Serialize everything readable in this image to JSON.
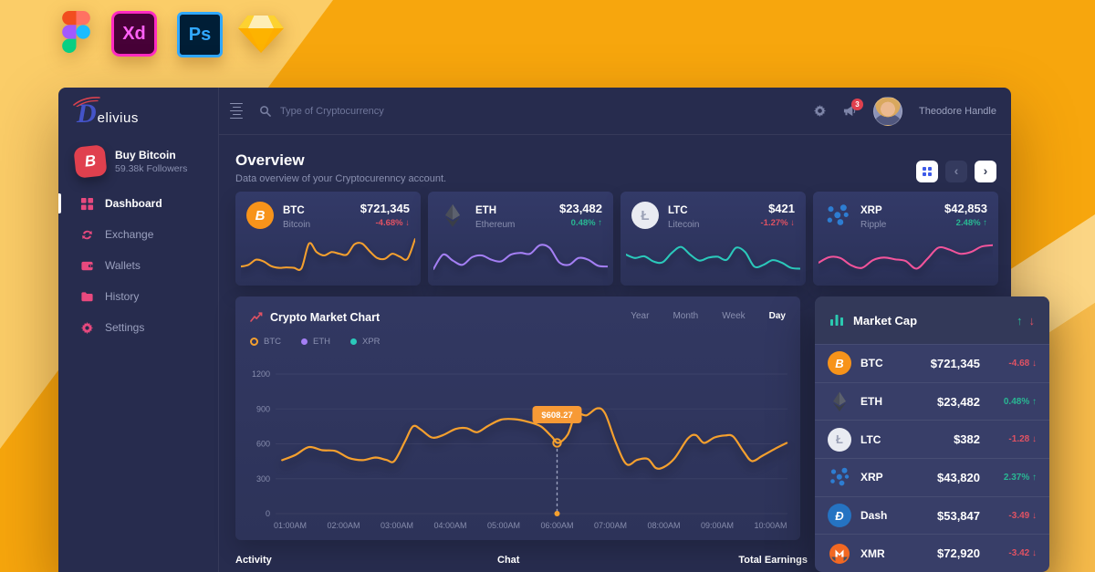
{
  "tool_icons": {
    "xd_label": "Xd",
    "ps_label": "Ps"
  },
  "brand": {
    "logo_initial": "D",
    "logo_rest": "elivius"
  },
  "sidebar": {
    "promo": {
      "title": "Buy Bitcoin",
      "subtitle": "59.38k Followers",
      "icon_glyph": "B"
    },
    "items": [
      {
        "label": "Dashboard",
        "icon": "dashboard",
        "active": true
      },
      {
        "label": "Exchange",
        "icon": "exchange",
        "active": false
      },
      {
        "label": "Wallets",
        "icon": "wallet",
        "active": false
      },
      {
        "label": "History",
        "icon": "history",
        "active": false
      },
      {
        "label": "Settings",
        "icon": "gear",
        "active": false
      }
    ]
  },
  "topbar": {
    "search_placeholder": "Type of Cryptocurrency",
    "notification_count": "3",
    "user_name": "Theodore Handle"
  },
  "overview": {
    "title": "Overview",
    "subtitle": "Data overview of your Cryptocurenncy account."
  },
  "stat_cards": [
    {
      "symbol": "BTC",
      "name": "Bitcoin",
      "price": "$721,345",
      "change": "-4.68%",
      "direction": "down",
      "line_color": "#F5A02E",
      "spark": [
        24,
        28,
        40,
        36,
        25,
        21,
        22,
        21,
        20,
        78,
        58,
        50,
        58,
        54,
        52,
        76,
        78,
        60,
        44,
        42,
        54,
        47,
        42,
        88
      ]
    },
    {
      "symbol": "ETH",
      "name": "Ethereum",
      "price": "$23,482",
      "change": "0.48%",
      "direction": "up",
      "line_color": "#A47FF4",
      "spark": [
        18,
        52,
        38,
        28,
        46,
        50,
        40,
        36,
        52,
        56,
        54,
        74,
        68,
        34,
        28,
        44,
        40,
        26,
        24
      ]
    },
    {
      "symbol": "LTC",
      "name": "Litecoin",
      "price": "$421",
      "change": "-1.27%",
      "direction": "down",
      "line_color": "#2BC9BB",
      "spark": [
        52,
        44,
        48,
        36,
        34,
        56,
        70,
        52,
        38,
        45,
        47,
        40,
        68,
        58,
        24,
        28,
        39,
        33,
        21,
        19
      ]
    },
    {
      "symbol": "XRP",
      "name": "Ripple",
      "price": "$42,853",
      "change": "2.48%",
      "direction": "up",
      "line_color": "#F2549B",
      "spark": [
        33,
        46,
        44,
        27,
        21,
        39,
        45,
        41,
        37,
        19,
        42,
        68,
        64,
        54,
        58,
        71,
        74
      ]
    }
  ],
  "market_chart": {
    "title": "Crypto Market Chart",
    "tabs": [
      "Year",
      "Month",
      "Week",
      "Day"
    ],
    "active_tab": "Day",
    "legend": [
      {
        "label": "BTC",
        "color": "#F5A02E",
        "style": "ring"
      },
      {
        "label": "ETH",
        "color": "#A47FF4",
        "style": "dot"
      },
      {
        "label": "XPR",
        "color": "#2BC9BB",
        "style": "dot"
      }
    ]
  },
  "chart_data": {
    "type": "line",
    "title": "Crypto Market Chart",
    "x_ticks": [
      "01:00AM",
      "02:00AM",
      "03:00AM",
      "04:00AM",
      "05:00AM",
      "06:00AM",
      "07:00AM",
      "08:00AM",
      "09:00AM",
      "10:00AM"
    ],
    "y_ticks": [
      0,
      300,
      600,
      900,
      1200
    ],
    "ylim": [
      0,
      1200
    ],
    "grid": "horizontal",
    "series": [
      {
        "name": "BTC",
        "color": "#F5A02E",
        "points": [
          [
            0.85,
            460
          ],
          [
            1.1,
            505
          ],
          [
            1.35,
            572
          ],
          [
            1.6,
            545
          ],
          [
            1.85,
            538
          ],
          [
            2.1,
            478
          ],
          [
            2.35,
            460
          ],
          [
            2.6,
            482
          ],
          [
            2.8,
            462
          ],
          [
            2.95,
            452
          ],
          [
            3.15,
            620
          ],
          [
            3.3,
            750
          ],
          [
            3.45,
            722
          ],
          [
            3.65,
            655
          ],
          [
            3.85,
            672
          ],
          [
            4.1,
            728
          ],
          [
            4.3,
            735
          ],
          [
            4.5,
            700
          ],
          [
            4.7,
            752
          ],
          [
            4.95,
            808
          ],
          [
            5.2,
            812
          ],
          [
            5.45,
            790
          ],
          [
            5.7,
            748
          ],
          [
            5.9,
            662
          ],
          [
            6.02,
            608
          ],
          [
            6.2,
            680
          ],
          [
            6.35,
            855
          ],
          [
            6.55,
            845
          ],
          [
            6.75,
            905
          ],
          [
            6.9,
            860
          ],
          [
            7.1,
            610
          ],
          [
            7.3,
            425
          ],
          [
            7.5,
            462
          ],
          [
            7.7,
            470
          ],
          [
            7.85,
            392
          ],
          [
            8.0,
            400
          ],
          [
            8.2,
            475
          ],
          [
            8.45,
            645
          ],
          [
            8.6,
            675
          ],
          [
            8.75,
            608
          ],
          [
            8.95,
            655
          ],
          [
            9.15,
            672
          ],
          [
            9.3,
            662
          ],
          [
            9.5,
            530
          ],
          [
            9.65,
            452
          ],
          [
            9.85,
            498
          ],
          [
            10.1,
            562
          ],
          [
            10.3,
            608
          ]
        ]
      }
    ],
    "tooltip": {
      "x": 6.0,
      "value": 608.27,
      "label": "$608.27",
      "x_label": "06:00AM"
    }
  },
  "market_cap": {
    "title": "Market Cap",
    "rows": [
      {
        "symbol": "BTC",
        "price": "$721,345",
        "change": "-4.68",
        "direction": "down"
      },
      {
        "symbol": "ETH",
        "price": "$23,482",
        "change": "0.48%",
        "direction": "up"
      },
      {
        "symbol": "LTC",
        "price": "$382",
        "change": "-1.28",
        "direction": "down"
      },
      {
        "symbol": "XRP",
        "price": "$43,820",
        "change": "2.37%",
        "direction": "up"
      },
      {
        "symbol": "Dash",
        "price": "$53,847",
        "change": "-3.49",
        "direction": "down"
      },
      {
        "symbol": "XMR",
        "price": "$72,920",
        "change": "-3.42",
        "direction": "down"
      }
    ]
  },
  "bottom_sections": [
    {
      "label": "Activity"
    },
    {
      "label": "Chat"
    },
    {
      "label": "Total Earnings"
    }
  ],
  "colors": {
    "up": "#29B793",
    "down": "#E05263",
    "accent": "#F5A02E",
    "background": "#F7A60D"
  }
}
